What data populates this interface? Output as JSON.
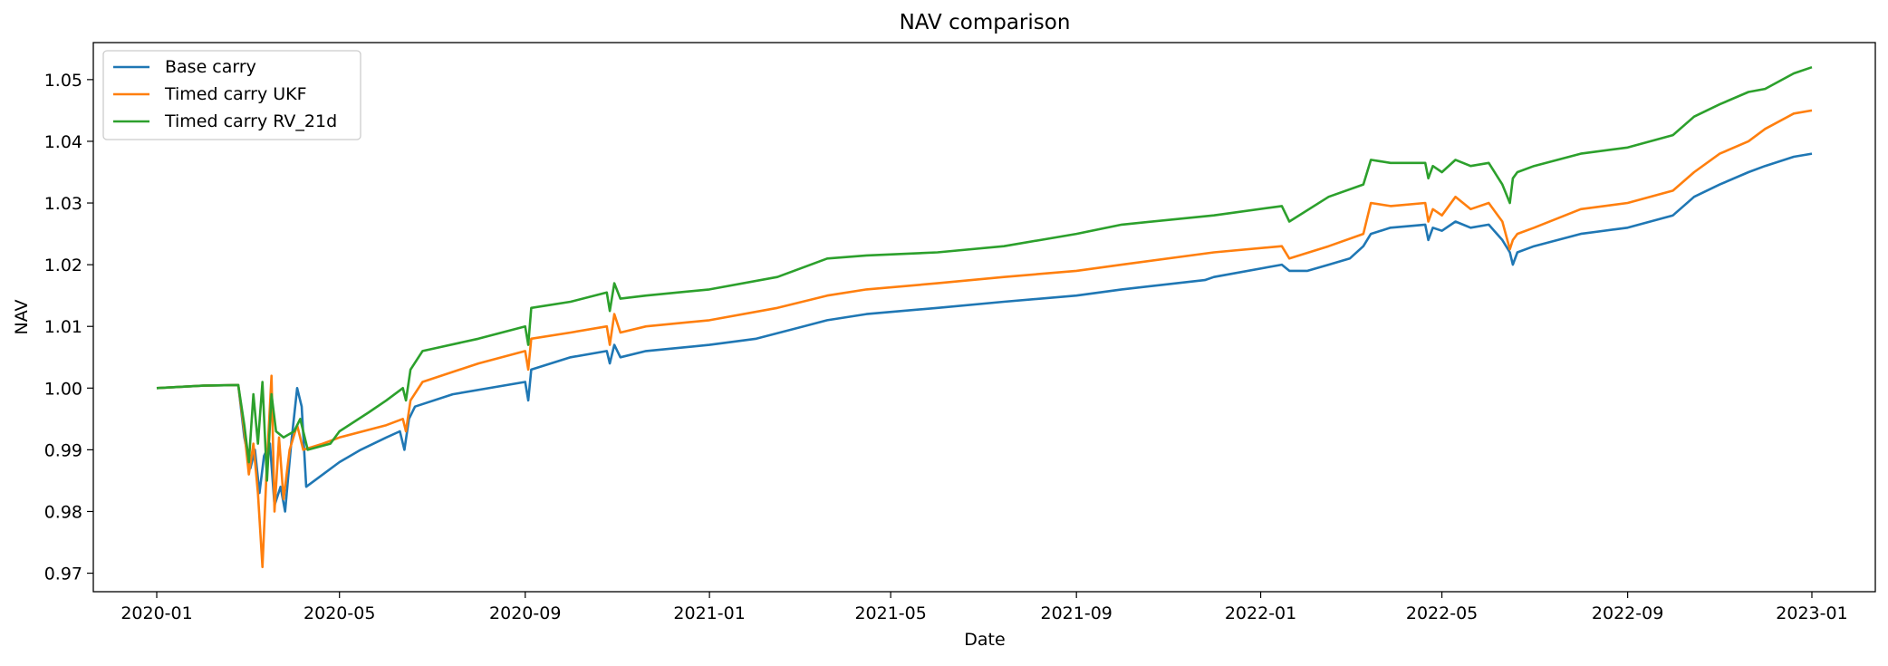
{
  "chart_data": {
    "type": "line",
    "title": "NAV comparison",
    "xlabel": "Date",
    "ylabel": "NAV",
    "xlim": [
      "2019-11-20",
      "2023-02-12"
    ],
    "ylim": [
      0.967,
      1.056
    ],
    "x_ticks": [
      "2020-01-01",
      "2020-05-01",
      "2020-09-01",
      "2021-01-01",
      "2021-05-01",
      "2021-09-01",
      "2022-01-01",
      "2022-05-01",
      "2022-09-01",
      "2023-01-01"
    ],
    "x_tick_labels": [
      "2020-01",
      "2020-05",
      "2020-09",
      "2021-01",
      "2021-05",
      "2021-09",
      "2022-01",
      "2022-05",
      "2022-09",
      "2023-01"
    ],
    "y_ticks": [
      0.97,
      0.98,
      0.99,
      1.0,
      1.01,
      1.02,
      1.03,
      1.04,
      1.05
    ],
    "y_tick_labels": [
      "0.97",
      "0.98",
      "0.99",
      "1.00",
      "1.01",
      "1.02",
      "1.03",
      "1.04",
      "1.05"
    ],
    "grid": false,
    "legend_position": "top-left",
    "series": [
      {
        "name": "Base carry",
        "color": "#1f77b4",
        "points": [
          [
            "2020-01-01",
            1.0
          ],
          [
            "2020-02-01",
            1.0004
          ],
          [
            "2020-02-24",
            1.0005
          ],
          [
            "2020-02-28",
            0.992
          ],
          [
            "2020-03-03",
            0.987
          ],
          [
            "2020-03-06",
            0.99
          ],
          [
            "2020-03-09",
            0.983
          ],
          [
            "2020-03-12",
            0.989
          ],
          [
            "2020-03-16",
            0.991
          ],
          [
            "2020-03-19",
            0.981
          ],
          [
            "2020-03-23",
            0.984
          ],
          [
            "2020-03-26",
            0.98
          ],
          [
            "2020-03-30",
            0.991
          ],
          [
            "2020-04-03",
            1.0
          ],
          [
            "2020-04-06",
            0.997
          ],
          [
            "2020-04-09",
            0.984
          ],
          [
            "2020-04-20",
            0.986
          ],
          [
            "2020-05-01",
            0.988
          ],
          [
            "2020-05-15",
            0.99
          ],
          [
            "2020-06-01",
            0.992
          ],
          [
            "2020-06-10",
            0.993
          ],
          [
            "2020-06-13",
            0.99
          ],
          [
            "2020-06-16",
            0.995
          ],
          [
            "2020-06-20",
            0.997
          ],
          [
            "2020-07-15",
            0.999
          ],
          [
            "2020-09-01",
            1.001
          ],
          [
            "2020-09-03",
            0.998
          ],
          [
            "2020-09-05",
            1.003
          ],
          [
            "2020-10-01",
            1.005
          ],
          [
            "2020-10-25",
            1.006
          ],
          [
            "2020-10-27",
            1.004
          ],
          [
            "2020-10-30",
            1.007
          ],
          [
            "2020-11-03",
            1.005
          ],
          [
            "2020-11-20",
            1.006
          ],
          [
            "2021-01-01",
            1.007
          ],
          [
            "2021-02-01",
            1.008
          ],
          [
            "2021-03-20",
            1.011
          ],
          [
            "2021-04-15",
            1.012
          ],
          [
            "2021-06-01",
            1.013
          ],
          [
            "2021-07-15",
            1.014
          ],
          [
            "2021-09-01",
            1.015
          ],
          [
            "2021-10-01",
            1.016
          ],
          [
            "2021-11-25",
            1.0175
          ],
          [
            "2021-12-01",
            1.018
          ],
          [
            "2022-01-15",
            1.02
          ],
          [
            "2022-01-20",
            1.019
          ],
          [
            "2022-02-01",
            1.019
          ],
          [
            "2022-02-15",
            1.02
          ],
          [
            "2022-03-01",
            1.021
          ],
          [
            "2022-03-10",
            1.023
          ],
          [
            "2022-03-15",
            1.025
          ],
          [
            "2022-03-28",
            1.026
          ],
          [
            "2022-04-20",
            1.0265
          ],
          [
            "2022-04-22",
            1.024
          ],
          [
            "2022-04-25",
            1.026
          ],
          [
            "2022-05-01",
            1.0255
          ],
          [
            "2022-05-10",
            1.027
          ],
          [
            "2022-05-20",
            1.026
          ],
          [
            "2022-06-01",
            1.0265
          ],
          [
            "2022-06-10",
            1.024
          ],
          [
            "2022-06-15",
            1.022
          ],
          [
            "2022-06-17",
            1.02
          ],
          [
            "2022-06-20",
            1.022
          ],
          [
            "2022-07-01",
            1.023
          ],
          [
            "2022-08-01",
            1.025
          ],
          [
            "2022-09-01",
            1.026
          ],
          [
            "2022-10-01",
            1.028
          ],
          [
            "2022-10-15",
            1.031
          ],
          [
            "2022-11-01",
            1.033
          ],
          [
            "2022-11-20",
            1.035
          ],
          [
            "2022-12-01",
            1.036
          ],
          [
            "2022-12-20",
            1.0375
          ],
          [
            "2023-01-01",
            1.038
          ]
        ]
      },
      {
        "name": "Timed carry UKF",
        "color": "#ff7f0e",
        "points": [
          [
            "2020-01-01",
            1.0
          ],
          [
            "2020-02-01",
            1.0004
          ],
          [
            "2020-02-24",
            1.0005
          ],
          [
            "2020-02-28",
            0.993
          ],
          [
            "2020-03-02",
            0.986
          ],
          [
            "2020-03-05",
            0.991
          ],
          [
            "2020-03-08",
            0.983
          ],
          [
            "2020-03-11",
            0.971
          ],
          [
            "2020-03-14",
            0.988
          ],
          [
            "2020-03-17",
            1.002
          ],
          [
            "2020-03-19",
            0.98
          ],
          [
            "2020-03-22",
            0.992
          ],
          [
            "2020-03-25",
            0.982
          ],
          [
            "2020-03-29",
            0.99
          ],
          [
            "2020-04-03",
            0.994
          ],
          [
            "2020-04-07",
            0.99
          ],
          [
            "2020-04-20",
            0.991
          ],
          [
            "2020-05-01",
            0.992
          ],
          [
            "2020-06-01",
            0.994
          ],
          [
            "2020-06-12",
            0.995
          ],
          [
            "2020-06-14",
            0.993
          ],
          [
            "2020-06-17",
            0.998
          ],
          [
            "2020-06-25",
            1.001
          ],
          [
            "2020-08-01",
            1.004
          ],
          [
            "2020-09-01",
            1.006
          ],
          [
            "2020-09-03",
            1.003
          ],
          [
            "2020-09-05",
            1.008
          ],
          [
            "2020-10-01",
            1.009
          ],
          [
            "2020-10-25",
            1.01
          ],
          [
            "2020-10-27",
            1.007
          ],
          [
            "2020-10-30",
            1.012
          ],
          [
            "2020-11-03",
            1.009
          ],
          [
            "2020-11-20",
            1.01
          ],
          [
            "2021-01-01",
            1.011
          ],
          [
            "2021-02-15",
            1.013
          ],
          [
            "2021-03-20",
            1.015
          ],
          [
            "2021-04-15",
            1.016
          ],
          [
            "2021-06-01",
            1.017
          ],
          [
            "2021-07-15",
            1.018
          ],
          [
            "2021-09-01",
            1.019
          ],
          [
            "2021-10-01",
            1.02
          ],
          [
            "2021-12-01",
            1.022
          ],
          [
            "2022-01-15",
            1.023
          ],
          [
            "2022-01-20",
            1.021
          ],
          [
            "2022-02-15",
            1.023
          ],
          [
            "2022-03-10",
            1.025
          ],
          [
            "2022-03-15",
            1.03
          ],
          [
            "2022-03-28",
            1.0295
          ],
          [
            "2022-04-20",
            1.03
          ],
          [
            "2022-04-22",
            1.027
          ],
          [
            "2022-04-25",
            1.029
          ],
          [
            "2022-05-01",
            1.028
          ],
          [
            "2022-05-10",
            1.031
          ],
          [
            "2022-05-20",
            1.029
          ],
          [
            "2022-06-01",
            1.03
          ],
          [
            "2022-06-10",
            1.027
          ],
          [
            "2022-06-15",
            1.0225
          ],
          [
            "2022-06-17",
            1.024
          ],
          [
            "2022-06-20",
            1.025
          ],
          [
            "2022-07-01",
            1.026
          ],
          [
            "2022-08-01",
            1.029
          ],
          [
            "2022-09-01",
            1.03
          ],
          [
            "2022-10-01",
            1.032
          ],
          [
            "2022-10-15",
            1.035
          ],
          [
            "2022-11-01",
            1.038
          ],
          [
            "2022-11-20",
            1.04
          ],
          [
            "2022-12-01",
            1.042
          ],
          [
            "2022-12-20",
            1.0445
          ],
          [
            "2023-01-01",
            1.045
          ]
        ]
      },
      {
        "name": "Timed carry RV_21d",
        "color": "#2ca02c",
        "points": [
          [
            "2020-01-01",
            1.0
          ],
          [
            "2020-02-01",
            1.0004
          ],
          [
            "2020-02-24",
            1.0005
          ],
          [
            "2020-02-28",
            0.994
          ],
          [
            "2020-03-02",
            0.988
          ],
          [
            "2020-03-05",
            0.999
          ],
          [
            "2020-03-08",
            0.991
          ],
          [
            "2020-03-11",
            1.001
          ],
          [
            "2020-03-14",
            0.985
          ],
          [
            "2020-03-17",
            0.999
          ],
          [
            "2020-03-20",
            0.993
          ],
          [
            "2020-03-25",
            0.992
          ],
          [
            "2020-04-01",
            0.993
          ],
          [
            "2020-04-05",
            0.995
          ],
          [
            "2020-04-10",
            0.99
          ],
          [
            "2020-04-25",
            0.991
          ],
          [
            "2020-05-01",
            0.993
          ],
          [
            "2020-05-20",
            0.996
          ],
          [
            "2020-06-01",
            0.998
          ],
          [
            "2020-06-12",
            1.0
          ],
          [
            "2020-06-14",
            0.998
          ],
          [
            "2020-06-17",
            1.003
          ],
          [
            "2020-06-25",
            1.006
          ],
          [
            "2020-08-01",
            1.008
          ],
          [
            "2020-09-01",
            1.01
          ],
          [
            "2020-09-03",
            1.007
          ],
          [
            "2020-09-05",
            1.013
          ],
          [
            "2020-10-01",
            1.014
          ],
          [
            "2020-10-25",
            1.0155
          ],
          [
            "2020-10-27",
            1.0125
          ],
          [
            "2020-10-30",
            1.017
          ],
          [
            "2020-11-03",
            1.0145
          ],
          [
            "2020-11-20",
            1.015
          ],
          [
            "2021-01-01",
            1.016
          ],
          [
            "2021-02-15",
            1.018
          ],
          [
            "2021-03-20",
            1.021
          ],
          [
            "2021-04-15",
            1.0215
          ],
          [
            "2021-06-01",
            1.022
          ],
          [
            "2021-07-15",
            1.023
          ],
          [
            "2021-09-01",
            1.025
          ],
          [
            "2021-10-01",
            1.0265
          ],
          [
            "2021-12-01",
            1.028
          ],
          [
            "2022-01-15",
            1.0295
          ],
          [
            "2022-01-20",
            1.027
          ],
          [
            "2022-02-15",
            1.031
          ],
          [
            "2022-03-10",
            1.033
          ],
          [
            "2022-03-15",
            1.037
          ],
          [
            "2022-03-28",
            1.0365
          ],
          [
            "2022-04-20",
            1.0365
          ],
          [
            "2022-04-22",
            1.034
          ],
          [
            "2022-04-25",
            1.036
          ],
          [
            "2022-05-01",
            1.035
          ],
          [
            "2022-05-10",
            1.037
          ],
          [
            "2022-05-20",
            1.036
          ],
          [
            "2022-06-01",
            1.0365
          ],
          [
            "2022-06-10",
            1.033
          ],
          [
            "2022-06-15",
            1.03
          ],
          [
            "2022-06-17",
            1.034
          ],
          [
            "2022-06-20",
            1.035
          ],
          [
            "2022-07-01",
            1.036
          ],
          [
            "2022-08-01",
            1.038
          ],
          [
            "2022-09-01",
            1.039
          ],
          [
            "2022-10-01",
            1.041
          ],
          [
            "2022-10-15",
            1.044
          ],
          [
            "2022-11-01",
            1.046
          ],
          [
            "2022-11-20",
            1.048
          ],
          [
            "2022-12-01",
            1.0485
          ],
          [
            "2022-12-20",
            1.051
          ],
          [
            "2023-01-01",
            1.052
          ]
        ]
      }
    ]
  }
}
